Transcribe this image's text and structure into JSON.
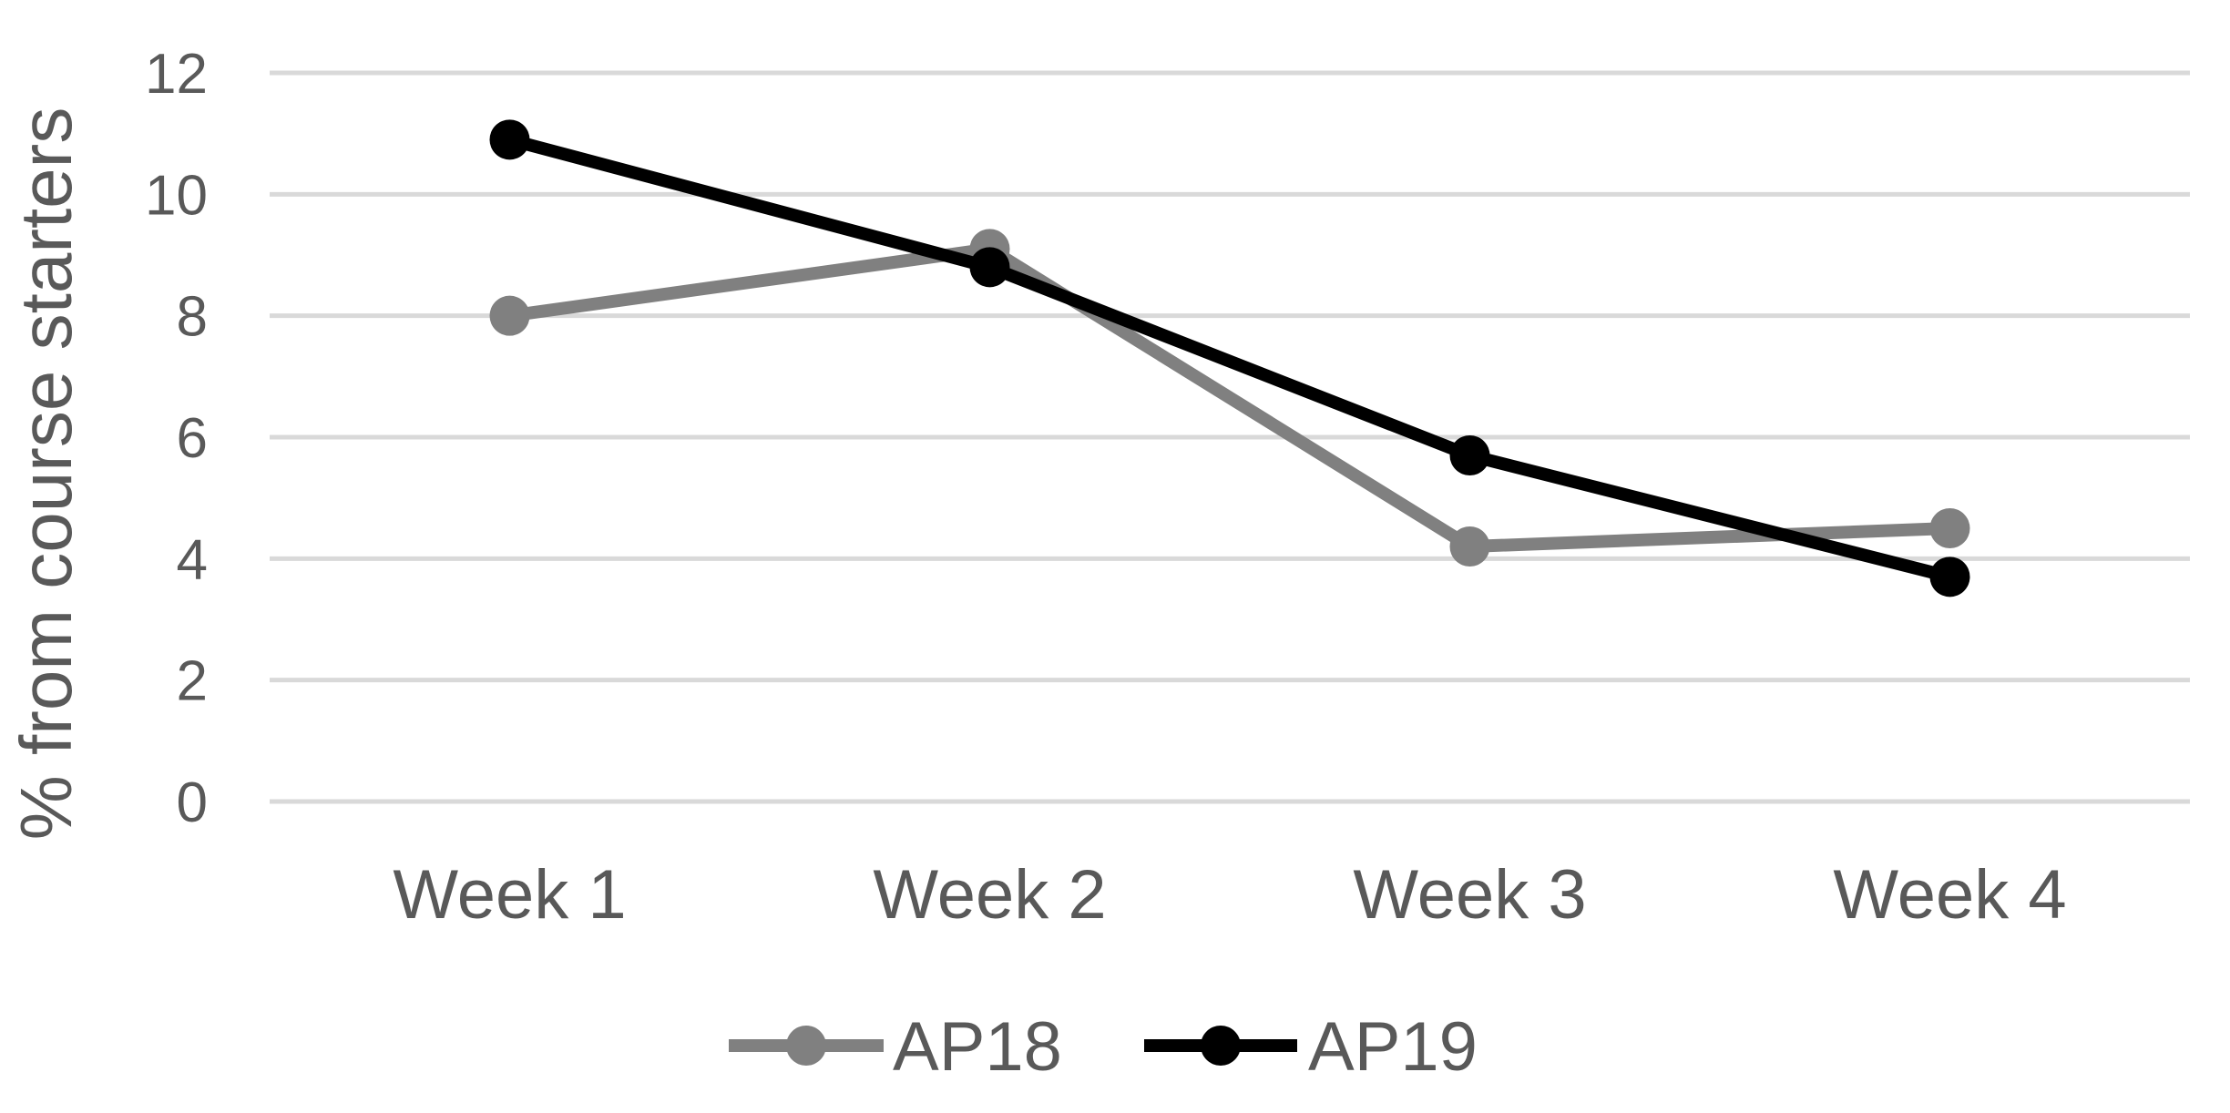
{
  "chart_data": {
    "type": "line",
    "title": "",
    "xlabel": "",
    "ylabel": "% from course starters",
    "categories": [
      "Week 1",
      "Week 2",
      "Week 3",
      "Week 4"
    ],
    "ylim": [
      0,
      12
    ],
    "yticks": [
      "0",
      "2",
      "4",
      "6",
      "8",
      "10",
      "12"
    ],
    "grid": true,
    "legend_position": "bottom",
    "series": [
      {
        "name": "AP18",
        "color": "#808080",
        "values": [
          8.0,
          9.1,
          4.2,
          4.5
        ]
      },
      {
        "name": "AP19",
        "color": "#000000",
        "values": [
          10.9,
          8.8,
          5.7,
          3.7
        ]
      }
    ]
  }
}
